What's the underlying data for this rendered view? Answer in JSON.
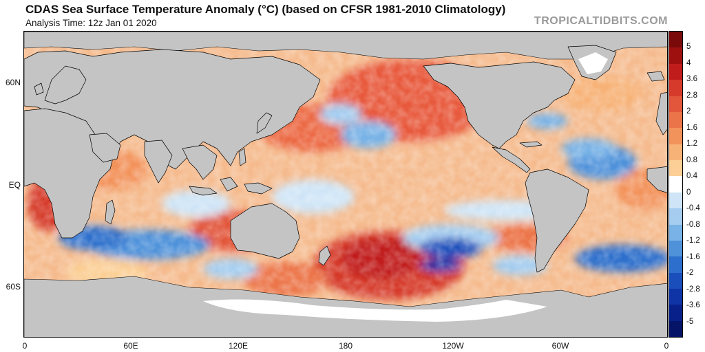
{
  "title": "CDAS Sea Surface Temperature Anomaly (°C) (based on CFSR 1981-2010 Climatology)",
  "subtitle": "Analysis Time: 12z Jan 01 2020",
  "watermark": "TROPICALTIDBITS.COM",
  "lat_labels": [
    "60N",
    "EQ",
    "60S"
  ],
  "lon_labels": [
    "0",
    "60E",
    "120E",
    "180",
    "120W",
    "60W",
    "0"
  ],
  "colorbar": {
    "labels": [
      "5",
      "4",
      "3.6",
      "2.8",
      "2",
      "1.6",
      "1.2",
      "0.8",
      "0.4",
      "0",
      "-0.4",
      "-0.8",
      "-1.2",
      "-1.6",
      "-2",
      "-2.8",
      "-3.6",
      "-5"
    ],
    "colors": [
      "#7a0a0a",
      "#9e1010",
      "#c11c1c",
      "#d63a2a",
      "#e2573b",
      "#ec7449",
      "#f3935c",
      "#f7b277",
      "#fbcf95",
      "#ffffff",
      "#cfe5f7",
      "#a4cdf0",
      "#78b2e6",
      "#4f92da",
      "#2d6fcc",
      "#1a4fbb",
      "#0f34a6",
      "#08218a",
      "#051467"
    ]
  },
  "colors": {
    "land": "#c4c4c4",
    "ice": "#ffffff",
    "border": "#000000"
  }
}
